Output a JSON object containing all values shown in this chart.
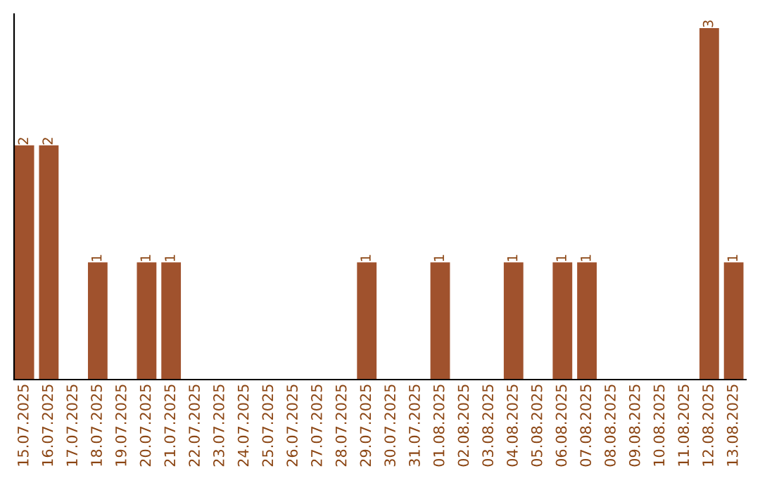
{
  "chart_data": {
    "type": "bar",
    "categories": [
      "15.07.2025",
      "16.07.2025",
      "17.07.2025",
      "18.07.2025",
      "19.07.2025",
      "20.07.2025",
      "21.07.2025",
      "22.07.2025",
      "23.07.2025",
      "24.07.2025",
      "25.07.2025",
      "26.07.2025",
      "27.07.2025",
      "28.07.2025",
      "29.07.2025",
      "30.07.2025",
      "31.07.2025",
      "01.08.2025",
      "02.08.2025",
      "03.08.2025",
      "04.08.2025",
      "05.08.2025",
      "06.08.2025",
      "07.08.2025",
      "08.08.2025",
      "09.08.2025",
      "10.08.2025",
      "11.08.2025",
      "12.08.2025",
      "13.08.2025"
    ],
    "values": [
      2,
      2,
      0,
      1,
      0,
      1,
      1,
      0,
      0,
      0,
      0,
      0,
      0,
      0,
      1,
      0,
      0,
      1,
      0,
      0,
      1,
      0,
      1,
      1,
      0,
      0,
      0,
      0,
      3,
      1
    ],
    "value_labels": [
      "2",
      "2",
      null,
      "1",
      null,
      "1",
      "1",
      null,
      null,
      null,
      null,
      null,
      null,
      null,
      "1",
      null,
      null,
      "1",
      null,
      null,
      "1",
      null,
      "1",
      "1",
      null,
      null,
      null,
      null,
      "3",
      "1"
    ],
    "color": "#a0522d",
    "tick_labels": "x",
    "grid": false,
    "legend": false
  }
}
